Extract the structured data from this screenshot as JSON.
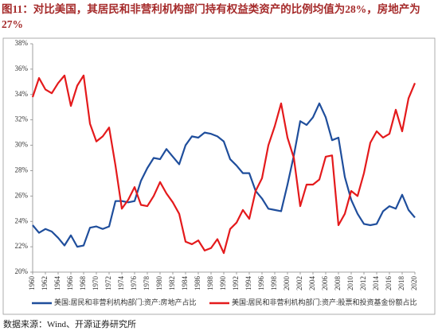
{
  "chart_data": {
    "type": "line",
    "title": "图11：对比美国，其居民和非营利机构部门持有权益类资产的比例均值为28%，房地产为27%",
    "source": "数据来源：Wind、开源证券研究所",
    "x": [
      1960,
      1961,
      1962,
      1963,
      1964,
      1965,
      1966,
      1967,
      1968,
      1969,
      1970,
      1971,
      1972,
      1973,
      1974,
      1975,
      1976,
      1977,
      1978,
      1979,
      1980,
      1981,
      1982,
      1983,
      1984,
      1985,
      1986,
      1987,
      1988,
      1989,
      1990,
      1991,
      1992,
      1993,
      1994,
      1995,
      1996,
      1997,
      1998,
      1999,
      2000,
      2001,
      2002,
      2003,
      2004,
      2005,
      2006,
      2007,
      2008,
      2009,
      2010,
      2011,
      2012,
      2013,
      2014,
      2015,
      2016,
      2017,
      2018,
      2019,
      2020
    ],
    "series": [
      {
        "name": "美国:居民和非营利机构部门:资产:房地产占比",
        "color": "#1f4e9c",
        "values": [
          23.7,
          23.1,
          23.4,
          23.2,
          22.7,
          22.1,
          22.9,
          22.0,
          22.1,
          23.5,
          23.6,
          23.4,
          23.6,
          25.6,
          25.6,
          25.5,
          25.6,
          27.2,
          28.2,
          29.0,
          28.9,
          29.7,
          29.1,
          28.5,
          30.0,
          30.7,
          30.6,
          31.0,
          30.9,
          30.7,
          30.3,
          28.9,
          28.4,
          27.8,
          27.8,
          26.4,
          25.8,
          25.0,
          24.9,
          24.8,
          26.9,
          29.2,
          31.9,
          31.6,
          32.2,
          33.3,
          32.2,
          30.4,
          30.6,
          27.5,
          25.7,
          24.6,
          23.8,
          23.7,
          23.8,
          24.8,
          25.2,
          25.0,
          26.1,
          24.9,
          24.3
        ]
      },
      {
        "name": "美国:居民和非营利机构部门:资产:股票和投资基金份额占比",
        "color": "#e41a1c",
        "values": [
          33.8,
          35.3,
          34.4,
          34.1,
          34.9,
          35.5,
          33.1,
          34.7,
          35.5,
          31.7,
          30.3,
          30.7,
          31.4,
          28.4,
          25.0,
          25.7,
          26.7,
          25.3,
          25.2,
          26.0,
          27.1,
          26.2,
          25.5,
          24.6,
          22.4,
          22.2,
          22.5,
          21.7,
          21.9,
          22.6,
          21.5,
          23.4,
          23.9,
          24.9,
          24.2,
          26.4,
          27.4,
          30.0,
          31.5,
          33.3,
          30.6,
          29.0,
          25.2,
          26.9,
          26.9,
          27.3,
          29.1,
          29.2,
          23.7,
          24.6,
          26.4,
          26.0,
          27.8,
          30.2,
          31.1,
          30.6,
          30.9,
          32.8,
          31.1,
          33.7,
          34.9
        ]
      }
    ],
    "xlim": [
      1960,
      2020
    ],
    "xticks": [
      1960,
      1962,
      1964,
      1966,
      1968,
      1970,
      1972,
      1974,
      1976,
      1978,
      1980,
      1982,
      1984,
      1986,
      1988,
      1990,
      1992,
      1994,
      1996,
      1998,
      2000,
      2002,
      2004,
      2006,
      2008,
      2010,
      2012,
      2014,
      2016,
      2018,
      2020
    ],
    "ylim": [
      20,
      38
    ],
    "yticks": [
      {
        "value": 20,
        "label": "20%"
      },
      {
        "value": 22,
        "label": "22%"
      },
      {
        "value": 24,
        "label": "24%"
      },
      {
        "value": 26,
        "label": "26%"
      },
      {
        "value": 28,
        "label": "28%"
      },
      {
        "value": 30,
        "label": "30%"
      },
      {
        "value": 32,
        "label": "32%"
      },
      {
        "value": 34,
        "label": "34%"
      },
      {
        "value": 36,
        "label": "36%"
      },
      {
        "value": 38,
        "label": "38%"
      }
    ],
    "grid": false,
    "legend": "bottom"
  }
}
